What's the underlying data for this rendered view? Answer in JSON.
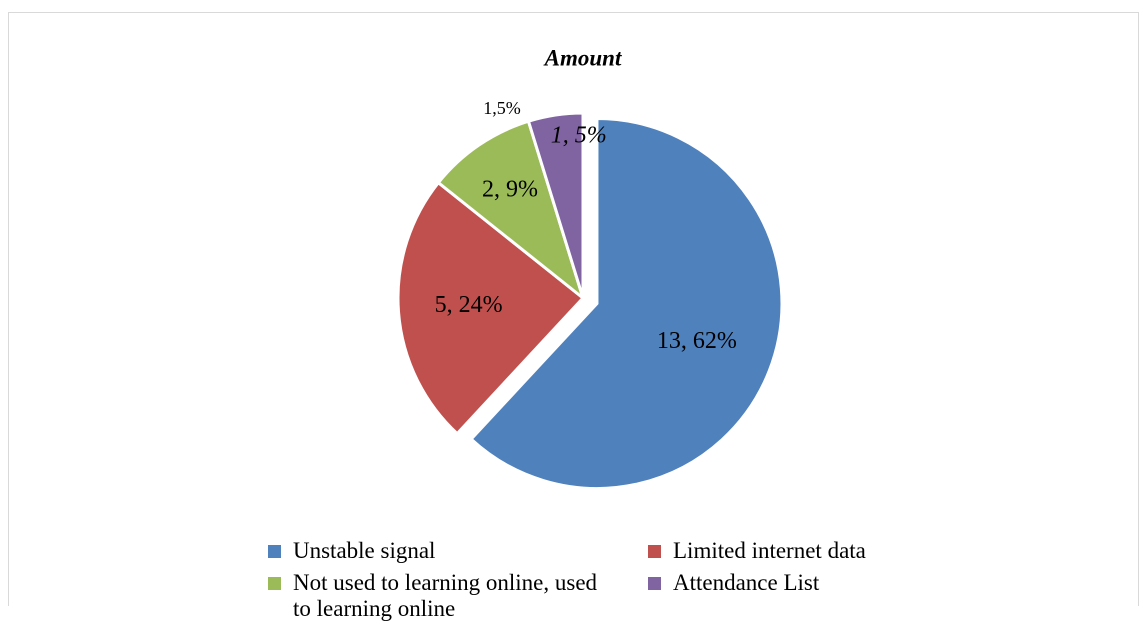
{
  "chart_data": {
    "type": "pie",
    "title": "Amount",
    "categories": [
      "Unstable signal",
      "Limited internet data",
      "Not used to learning online, used to learning online",
      "Attendance List"
    ],
    "values": [
      13,
      5,
      2,
      1
    ],
    "value_labels": [
      "13, 62%",
      "5, 24%",
      "2, 9%",
      "1, 5%"
    ],
    "colors": [
      "#4f81bd",
      "#c0504d",
      "#9bbb59",
      "#8064a2"
    ],
    "annotations": [
      "1,5%"
    ],
    "legend": "bottom"
  }
}
